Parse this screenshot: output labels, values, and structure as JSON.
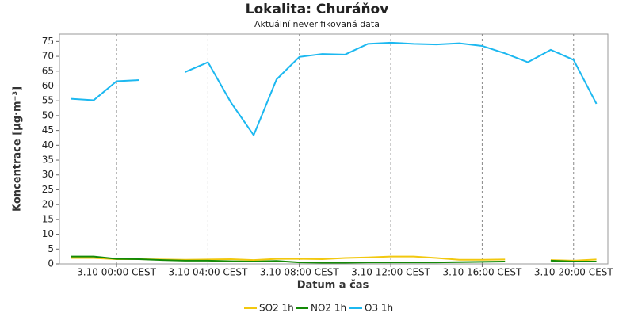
{
  "chart_data": {
    "type": "line",
    "title": "Lokalita: Churáňov",
    "subtitle": "Aktuální neverifikovaná data",
    "x_label": "Datum a čas",
    "y_label": "Koncentrace [µg·m⁻³]",
    "categories": [
      null,
      null,
      "3.10 00:00 CEST",
      null,
      null,
      null,
      "3.10 04:00 CEST",
      null,
      null,
      null,
      "3.10 08:00 CEST",
      null,
      null,
      null,
      "3.10 12:00 CEST",
      null,
      null,
      null,
      "3.10 16:00 CEST",
      null,
      null,
      null,
      "3.10 20:00 CEST",
      null
    ],
    "series": [
      {
        "name": "SO2 1h",
        "color": "#f2c80f",
        "values": [
          2.0,
          2.0,
          1.6,
          1.6,
          1.5,
          1.4,
          1.5,
          1.6,
          1.3,
          1.7,
          1.7,
          1.6,
          2.0,
          2.2,
          2.5,
          2.5,
          2.0,
          1.4,
          1.4,
          1.5,
          null,
          1.3,
          1.1,
          1.5
        ]
      },
      {
        "name": "NO2 1h",
        "color": "#138a07",
        "values": [
          2.5,
          2.5,
          1.7,
          1.6,
          1.3,
          1.1,
          1.1,
          0.9,
          0.8,
          1.0,
          0.5,
          0.4,
          0.4,
          0.5,
          0.5,
          0.5,
          0.5,
          0.6,
          0.7,
          0.8,
          null,
          1.1,
          0.8,
          0.8
        ]
      },
      {
        "name": "O3 1h",
        "color": "#1cb8f0",
        "values": [
          55.7,
          55.2,
          61.6,
          62.0,
          null,
          64.7,
          68.0,
          54.5,
          43.4,
          62.2,
          69.8,
          70.8,
          70.6,
          74.2,
          74.6,
          74.2,
          74.0,
          74.4,
          73.5,
          71.0,
          68.0,
          72.2,
          68.8,
          54.0
        ]
      }
    ],
    "ylim": [
      0,
      77.5
    ],
    "yticks": [
      0,
      5,
      10,
      15,
      20,
      25,
      30,
      35,
      40,
      45,
      50,
      55,
      60,
      65,
      70,
      75
    ],
    "grid": true,
    "legend": "bottom"
  }
}
